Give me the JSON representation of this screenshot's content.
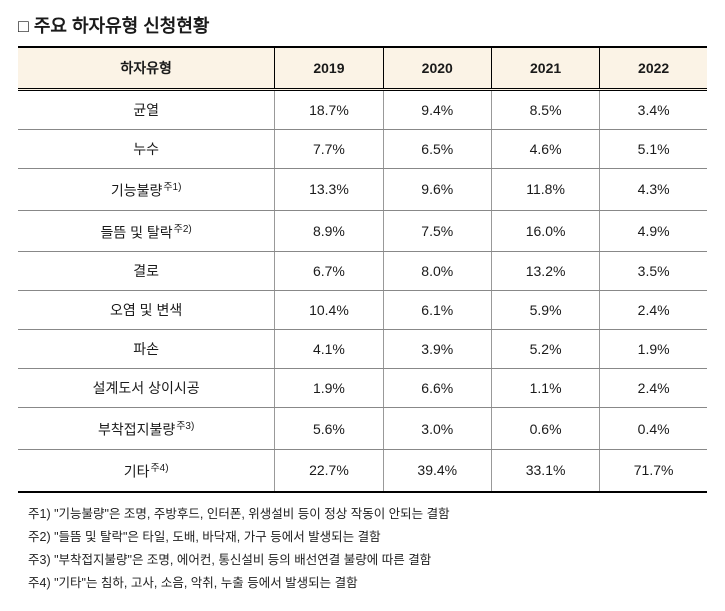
{
  "title": "□ 주요 하자유형 신청현황",
  "columns": [
    "하자유형",
    "2019",
    "2020",
    "2021",
    "2022"
  ],
  "rows": [
    {
      "label": "균열",
      "sup": "",
      "v": [
        "18.7%",
        "9.4%",
        "8.5%",
        "3.4%"
      ]
    },
    {
      "label": "누수",
      "sup": "",
      "v": [
        "7.7%",
        "6.5%",
        "4.6%",
        "5.1%"
      ]
    },
    {
      "label": "기능불량",
      "sup": "주1)",
      "v": [
        "13.3%",
        "9.6%",
        "11.8%",
        "4.3%"
      ]
    },
    {
      "label": "들뜸 및 탈락",
      "sup": "주2)",
      "v": [
        "8.9%",
        "7.5%",
        "16.0%",
        "4.9%"
      ]
    },
    {
      "label": "결로",
      "sup": "",
      "v": [
        "6.7%",
        "8.0%",
        "13.2%",
        "3.5%"
      ]
    },
    {
      "label": "오염 및 변색",
      "sup": "",
      "v": [
        "10.4%",
        "6.1%",
        "5.9%",
        "2.4%"
      ]
    },
    {
      "label": "파손",
      "sup": "",
      "v": [
        "4.1%",
        "3.9%",
        "5.2%",
        "1.9%"
      ]
    },
    {
      "label": "설계도서 상이시공",
      "sup": "",
      "v": [
        "1.9%",
        "6.6%",
        "1.1%",
        "2.4%"
      ]
    },
    {
      "label": "부착접지불량",
      "sup": "주3)",
      "v": [
        "5.6%",
        "3.0%",
        "0.6%",
        "0.4%"
      ]
    },
    {
      "label": "기타",
      "sup": "주4)",
      "v": [
        "22.7%",
        "39.4%",
        "33.1%",
        "71.7%"
      ]
    }
  ],
  "notes": [
    "주1) \"기능불량\"은 조명, 주방후드, 인터폰, 위생설비 등이 정상 작동이 안되는 결함",
    "주2) \"들뜸 및 탈락\"은 타일, 도배, 바닥재, 가구 등에서 발생되는 결함",
    "주3) \"부착접지불량\"은 조명, 에어컨, 통신설비 등의 배선연결 불량에 따른 결함",
    "주4) \"기타\"는 침하, 고사, 소음, 악취, 누출 등에서 발생되는 결함"
  ]
}
